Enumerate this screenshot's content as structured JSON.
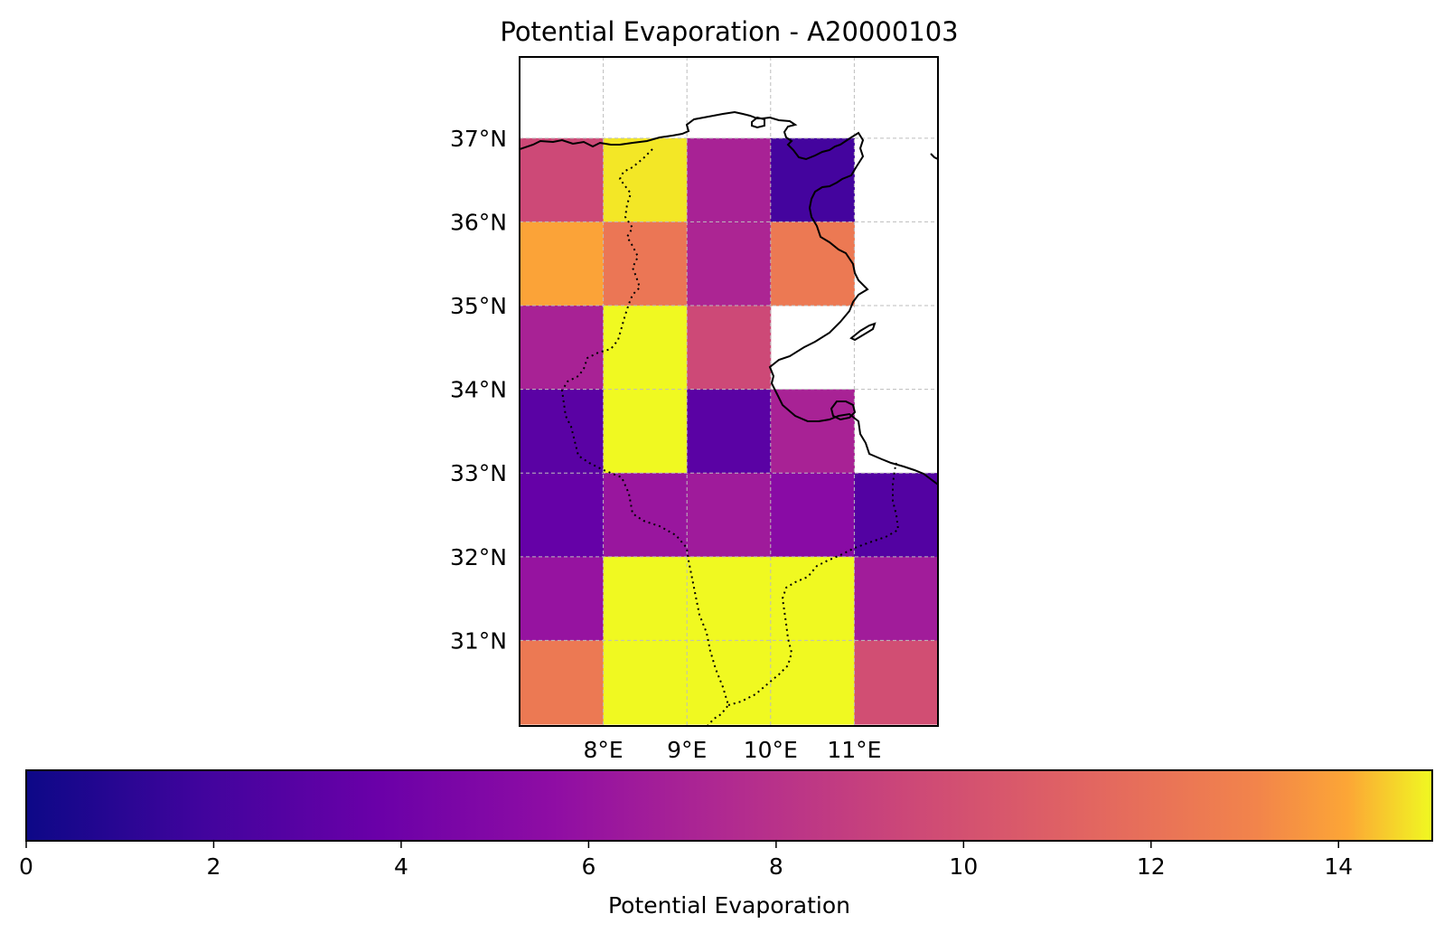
{
  "chart_data": {
    "type": "heatmap",
    "title": "Potential Evaporation - A20000103",
    "colormap": "plasma",
    "x_tick_labels": [
      "8°E",
      "9°E",
      "10°E",
      "11°E"
    ],
    "x_tick_values": [
      8,
      9,
      10,
      11
    ],
    "y_tick_labels": [
      "37°N",
      "36°N",
      "35°N",
      "34°N",
      "33°N",
      "32°N",
      "31°N"
    ],
    "y_tick_values": [
      37,
      36,
      35,
      34,
      33,
      32,
      31
    ],
    "lon_range": [
      7,
      12
    ],
    "lat_range": [
      30,
      38
    ],
    "grid": true,
    "cell_size_degrees": 1,
    "cells": [
      {
        "lon": [
          7,
          8
        ],
        "lat": [
          36,
          37
        ],
        "value": 9.5
      },
      {
        "lon": [
          8,
          9
        ],
        "lat": [
          36,
          37
        ],
        "value": 14.8
      },
      {
        "lon": [
          9,
          10
        ],
        "lat": [
          36,
          37
        ],
        "value": 7.0
      },
      {
        "lon": [
          10,
          11
        ],
        "lat": [
          36,
          37
        ],
        "value": 2.0
      },
      {
        "lon": [
          7,
          8
        ],
        "lat": [
          35,
          36
        ],
        "value": 14.0
      },
      {
        "lon": [
          8,
          9
        ],
        "lat": [
          35,
          36
        ],
        "value": 12.3
      },
      {
        "lon": [
          9,
          10
        ],
        "lat": [
          35,
          36
        ],
        "value": 7.2
      },
      {
        "lon": [
          10,
          11
        ],
        "lat": [
          35,
          36
        ],
        "value": 12.5
      },
      {
        "lon": [
          7,
          8
        ],
        "lat": [
          34,
          35
        ],
        "value": 7.0
      },
      {
        "lon": [
          8,
          9
        ],
        "lat": [
          34,
          35
        ],
        "value": 15.0
      },
      {
        "lon": [
          9,
          10
        ],
        "lat": [
          34,
          35
        ],
        "value": 9.5
      },
      {
        "lon": [
          7,
          8
        ],
        "lat": [
          33,
          34
        ],
        "value": 3.0
      },
      {
        "lon": [
          8,
          9
        ],
        "lat": [
          33,
          34
        ],
        "value": 15.0
      },
      {
        "lon": [
          9,
          10
        ],
        "lat": [
          33,
          34
        ],
        "value": 3.0
      },
      {
        "lon": [
          10,
          11
        ],
        "lat": [
          33,
          34
        ],
        "value": 7.0
      },
      {
        "lon": [
          7,
          8
        ],
        "lat": [
          32,
          33
        ],
        "value": 3.5
      },
      {
        "lon": [
          8,
          9
        ],
        "lat": [
          32,
          33
        ],
        "value": 6.2
      },
      {
        "lon": [
          9,
          10
        ],
        "lat": [
          32,
          33
        ],
        "value": 6.5
      },
      {
        "lon": [
          10,
          11
        ],
        "lat": [
          32,
          33
        ],
        "value": 5.3
      },
      {
        "lon": [
          11,
          12
        ],
        "lat": [
          32,
          33
        ],
        "value": 2.7
      },
      {
        "lon": [
          7,
          8
        ],
        "lat": [
          31,
          32
        ],
        "value": 6.0
      },
      {
        "lon": [
          8,
          9
        ],
        "lat": [
          31,
          32
        ],
        "value": 15.0
      },
      {
        "lon": [
          9,
          10
        ],
        "lat": [
          31,
          32
        ],
        "value": 15.0
      },
      {
        "lon": [
          10,
          11
        ],
        "lat": [
          31,
          32
        ],
        "value": 15.0
      },
      {
        "lon": [
          11,
          12
        ],
        "lat": [
          31,
          32
        ],
        "value": 6.6
      },
      {
        "lon": [
          7,
          8
        ],
        "lat": [
          30,
          31
        ],
        "value": 12.5
      },
      {
        "lon": [
          8,
          9
        ],
        "lat": [
          30,
          31
        ],
        "value": 15.0
      },
      {
        "lon": [
          9,
          10
        ],
        "lat": [
          30,
          31
        ],
        "value": 15.0
      },
      {
        "lon": [
          10,
          11
        ],
        "lat": [
          30,
          31
        ],
        "value": 15.0
      },
      {
        "lon": [
          11,
          12
        ],
        "lat": [
          30,
          31
        ],
        "value": 9.8
      }
    ],
    "colorbar": {
      "label": "Potential Evaporation",
      "range": [
        0,
        15
      ],
      "tick_values": [
        0,
        2,
        4,
        6,
        8,
        10,
        12,
        14
      ],
      "tick_labels": [
        "0",
        "2",
        "4",
        "6",
        "8",
        "10",
        "12",
        "14"
      ]
    }
  }
}
